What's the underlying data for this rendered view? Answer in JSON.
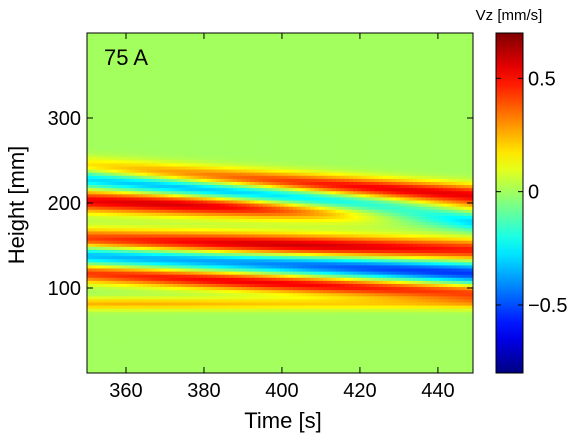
{
  "chart_data": {
    "type": "heatmap",
    "annotation": "75 A",
    "xlabel": "Time [s]",
    "ylabel": "Height [mm]",
    "xlim": [
      350,
      449
    ],
    "ylim": [
      0,
      400
    ],
    "xticks": [
      360,
      380,
      400,
      420,
      440
    ],
    "yticks": [
      100,
      200,
      300
    ],
    "colorbar": {
      "title": "Vz [mm/s]",
      "range": [
        -0.8,
        0.7
      ],
      "ticks": [
        0.5,
        0,
        -0.5
      ],
      "tick_labels": [
        "0.5",
        "0",
        "−0.5"
      ],
      "colormap": "jet"
    },
    "bands": [
      {
        "v": 0.6,
        "y_at_start": 157,
        "y_at_end": 145,
        "width_mm": 13,
        "peak_x": 400
      },
      {
        "v": -0.55,
        "y_at_start": 140,
        "y_at_end": 118,
        "width_mm": 13,
        "peak_x": 440
      },
      {
        "v": 0.6,
        "y_at_start": 203,
        "y_at_end": 188,
        "width_mm": 13,
        "peak_x": 380
      },
      {
        "v": -0.65,
        "y_at_start": 232,
        "y_at_end": 183,
        "width_mm": 13,
        "peak_x": 440
      },
      {
        "v": 0.55,
        "y_at_start": 118,
        "y_at_end": 95,
        "width_mm": 11,
        "peak_x": 395
      },
      {
        "v": 0.55,
        "y_at_start": 240,
        "y_at_end": 210,
        "width_mm": 12,
        "peak_x": 430
      },
      {
        "v": 0.25,
        "y_at_start": 82,
        "y_at_end": 82,
        "width_mm": 7,
        "peak_x": 360
      }
    ]
  }
}
